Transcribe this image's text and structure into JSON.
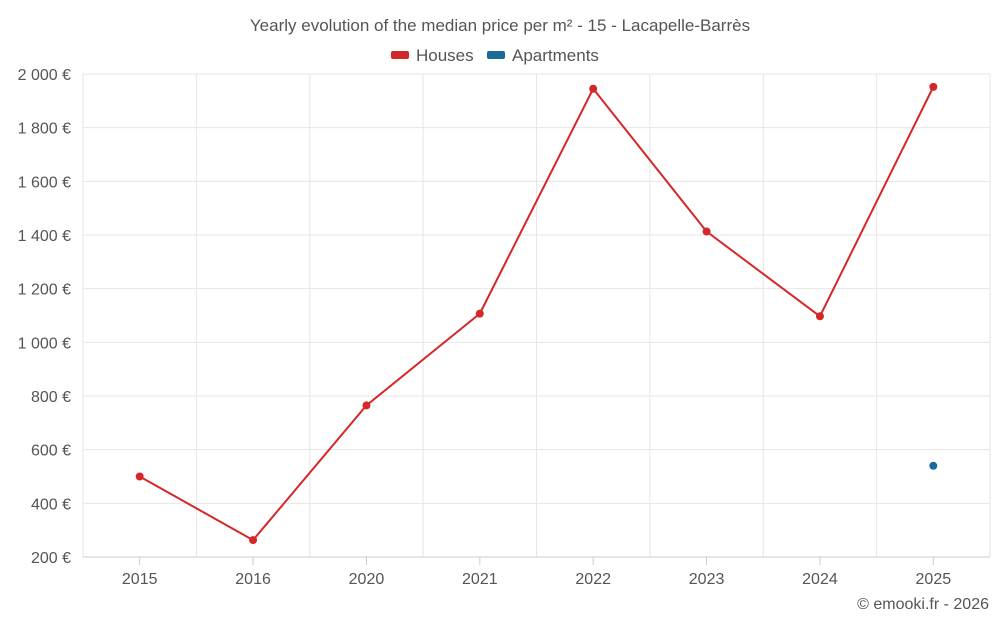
{
  "chart_data": {
    "type": "line",
    "title": "Yearly evolution of the median price per m² - 15 - Lacapelle-Barrès",
    "categories": [
      "2015",
      "2016",
      "2020",
      "2021",
      "2022",
      "2023",
      "2024",
      "2025"
    ],
    "y_ticks": [
      200,
      400,
      600,
      800,
      1000,
      1200,
      1400,
      1600,
      1800,
      2000
    ],
    "y_tick_labels": [
      "200 €",
      "400 €",
      "600 €",
      "800 €",
      "1 000 €",
      "1 200 €",
      "1 400 €",
      "1 600 €",
      "1 800 €",
      "2 000 €"
    ],
    "ylim": [
      200,
      2000
    ],
    "grid": true,
    "legend_position": "top-center",
    "series": [
      {
        "name": "Houses",
        "color": "#d62728",
        "values": [
          500,
          263,
          765,
          1107,
          1945,
          1413,
          1097,
          1952
        ]
      },
      {
        "name": "Apartments",
        "color": "#1a6a9a",
        "values": [
          null,
          null,
          null,
          null,
          null,
          null,
          null,
          540
        ]
      }
    ],
    "credit": "© emooki.fr - 2026"
  }
}
